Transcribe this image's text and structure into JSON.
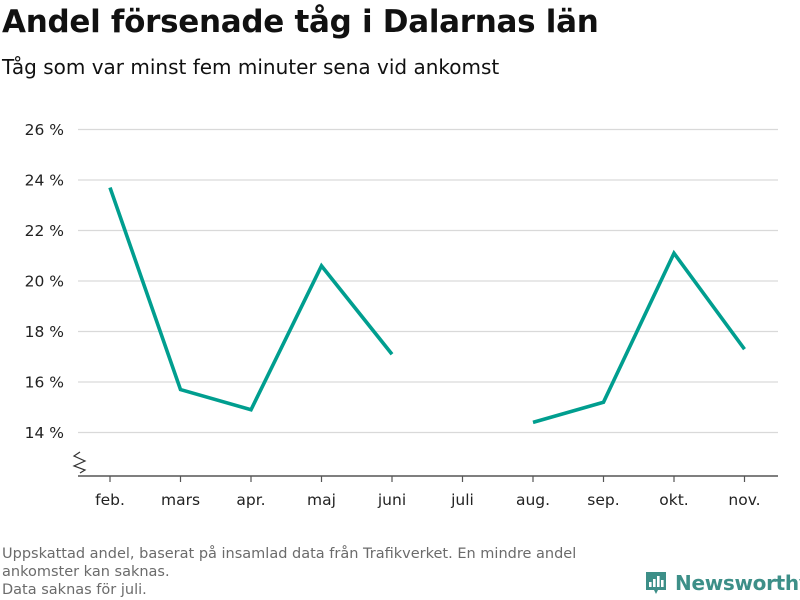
{
  "title": "Andel försenade tåg i Dalarnas län",
  "subtitle": "Tåg som var minst fem minuter sena vid ankomst",
  "footnote": {
    "line1": "Uppskattad andel, baserat på insamlad data från Trafikverket. En mindre andel ankomster kan saknas.",
    "line2": "Data saknas för juli."
  },
  "brand": {
    "name": "Newsworthy",
    "color": "#3d8f88"
  },
  "chart_data": {
    "type": "line",
    "title": "Andel försenade tåg i Dalarnas län",
    "subtitle": "Tåg som var minst fem minuter sena vid ankomst",
    "xlabel": "",
    "ylabel": "",
    "categories": [
      "feb.",
      "mars",
      "apr.",
      "maj",
      "juni",
      "juli",
      "aug.",
      "sep.",
      "okt.",
      "nov."
    ],
    "series": [
      {
        "color": "#009e8f",
        "values": [
          23.7,
          15.7,
          14.9,
          20.6,
          17.1,
          null,
          14.4,
          15.2,
          21.1,
          17.3
        ]
      }
    ],
    "yticks": [
      14,
      16,
      18,
      20,
      22,
      24,
      26
    ],
    "ytick_labels": [
      "14 %",
      "16 %",
      "18 %",
      "20 %",
      "22 %",
      "24 %",
      "26 %"
    ],
    "ylim": [
      12.25,
      26
    ],
    "y_axis_break": true,
    "grid": true,
    "colors": {
      "line": "#009e8f",
      "grid": "#d9d9d9",
      "axis": "#555555",
      "text": "#222222"
    }
  }
}
